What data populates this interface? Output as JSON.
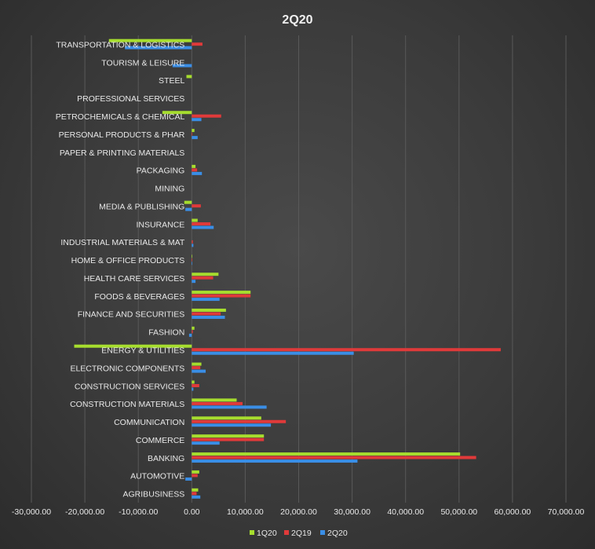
{
  "chart_data": {
    "type": "bar",
    "orientation": "horizontal",
    "title": "2Q20",
    "xlabel": "",
    "ylabel": "",
    "xlim": [
      -30000,
      70000
    ],
    "xticks": [
      -30000,
      -20000,
      -10000,
      0,
      10000,
      20000,
      30000,
      40000,
      50000,
      60000,
      70000
    ],
    "xtick_labels": [
      "-30,000.00",
      "-20,000.00",
      "-10,000.00",
      "0.00",
      "10,000.00",
      "20,000.00",
      "30,000.00",
      "40,000.00",
      "50,000.00",
      "60,000.00",
      "70,000.00"
    ],
    "grid": true,
    "legend": "bottom",
    "categories": [
      "AGRIBUSINESS",
      "AUTOMOTIVE",
      "BANKING",
      "COMMERCE",
      "COMMUNICATION",
      "CONSTRUCTION MATERIALS",
      "CONSTRUCTION SERVICES",
      "ELECTRONIC COMPONENTS",
      "ENERGY & UTILITIES",
      "FASHION",
      "FINANCE AND SECURITIES",
      "FOODS & BEVERAGES",
      "HEALTH CARE SERVICES",
      "HOME & OFFICE PRODUCTS",
      "INDUSTRIAL MATERIALS & MAT",
      "INSURANCE",
      "MEDIA & PUBLISHING",
      "MINING",
      "PACKAGING",
      "PAPER & PRINTING MATERIALS",
      "PERSONAL PRODUCTS & PHAR",
      "PETROCHEMICALS & CHEMICAL",
      "PROFESSIONAL SERVICES",
      "STEEL",
      "TOURISM & LEISURE",
      "TRANSPORTATION & LOGISTICS"
    ],
    "series": [
      {
        "name": "1Q20",
        "color": "#a6dd2e",
        "values": [
          1200,
          1400,
          50200,
          13500,
          13000,
          8400,
          500,
          1800,
          -22000,
          500,
          6400,
          11000,
          5000,
          100,
          0,
          1100,
          -1400,
          0,
          700,
          0,
          500,
          -5500,
          0,
          -1000,
          0,
          -15500
        ]
      },
      {
        "name": "2Q19",
        "color": "#e03a3a",
        "values": [
          900,
          1100,
          53200,
          13500,
          17600,
          9500,
          1400,
          1600,
          57800,
          200,
          5400,
          11000,
          4000,
          100,
          200,
          3500,
          1700,
          0,
          1000,
          0,
          100,
          5500,
          0,
          0,
          0,
          2000
        ]
      },
      {
        "name": "2Q20",
        "color": "#3a8ee6",
        "values": [
          1600,
          -1200,
          31000,
          5200,
          14800,
          14000,
          300,
          2600,
          30300,
          -500,
          6200,
          5200,
          700,
          100,
          300,
          4100,
          -1200,
          0,
          1900,
          0,
          1100,
          1800,
          0,
          0,
          -3600,
          -12500
        ]
      }
    ]
  }
}
